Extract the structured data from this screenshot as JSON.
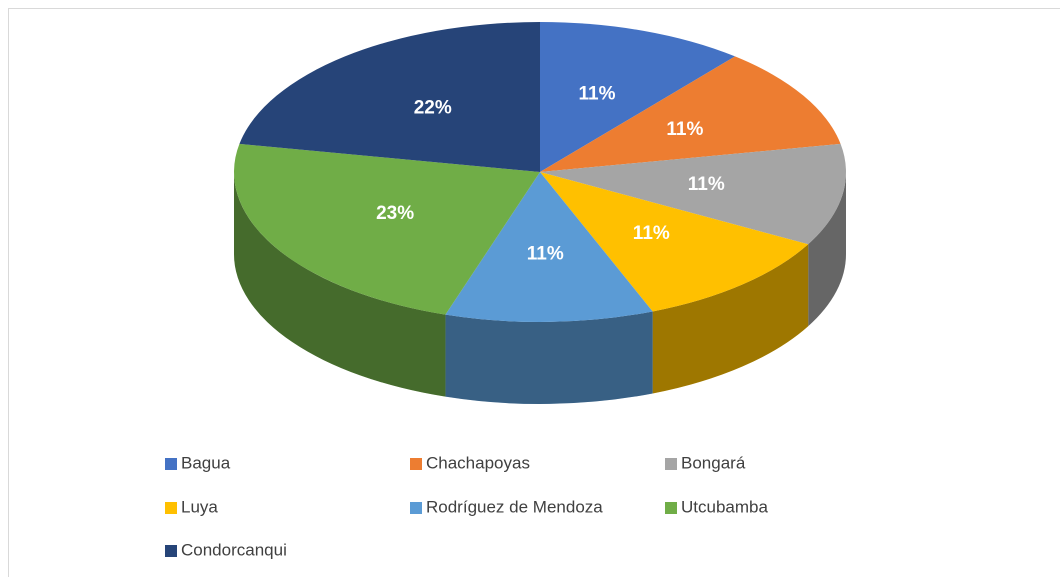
{
  "chart_data": {
    "type": "pie3d",
    "categories": [
      "Bagua",
      "Chachapoyas",
      "Bongará",
      "Luya",
      "Rodríguez de Mendoza",
      "Utcubamba",
      "Condorcanqui"
    ],
    "values": [
      11,
      11,
      11,
      11,
      11,
      23,
      22
    ],
    "value_labels": [
      "11%",
      "11%",
      "11%",
      "11%",
      "11%",
      "23%",
      "22%"
    ],
    "colors": [
      "#4472c4",
      "#ed7d31",
      "#a5a5a5",
      "#ffc000",
      "#5b9bd5",
      "#70ad47",
      "#264478"
    ],
    "legend": "bottom"
  }
}
